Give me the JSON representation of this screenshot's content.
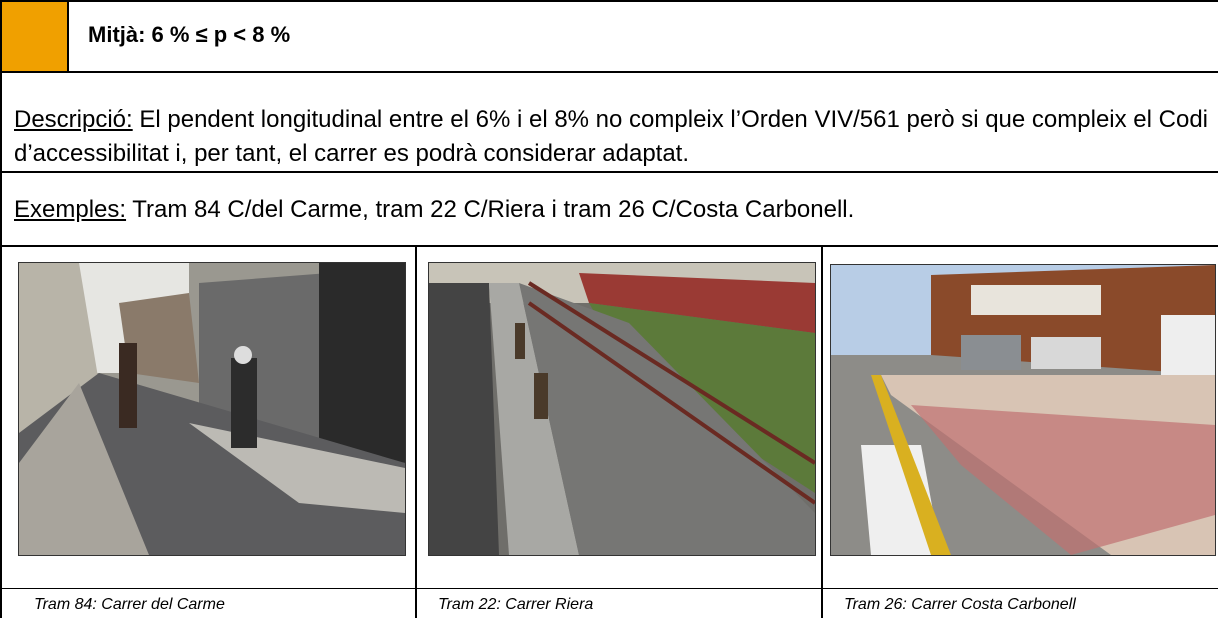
{
  "header": {
    "title": "Mitjà: 6 % ≤ p < 8 %"
  },
  "description": {
    "label": "Descripció:",
    "text": "El pendent longitudinal entre el 6% i el 8% no compleix l’Orden VIV/561 però si que compleix el Codi d’accessibilitat i, per tant, el carrer es podrà considerar adaptat."
  },
  "examples": {
    "label": "Exemples:",
    "text": "Tram 84 C/del Carme, tram 22 C/Riera i tram 26 C/Costa Carbonell."
  },
  "photos": [
    {
      "caption": "Tram 84: Carrer del Carme"
    },
    {
      "caption": "Tram 22: Carrer Riera"
    },
    {
      "caption": "Tram 26: Carrer Costa Carbonell"
    }
  ]
}
